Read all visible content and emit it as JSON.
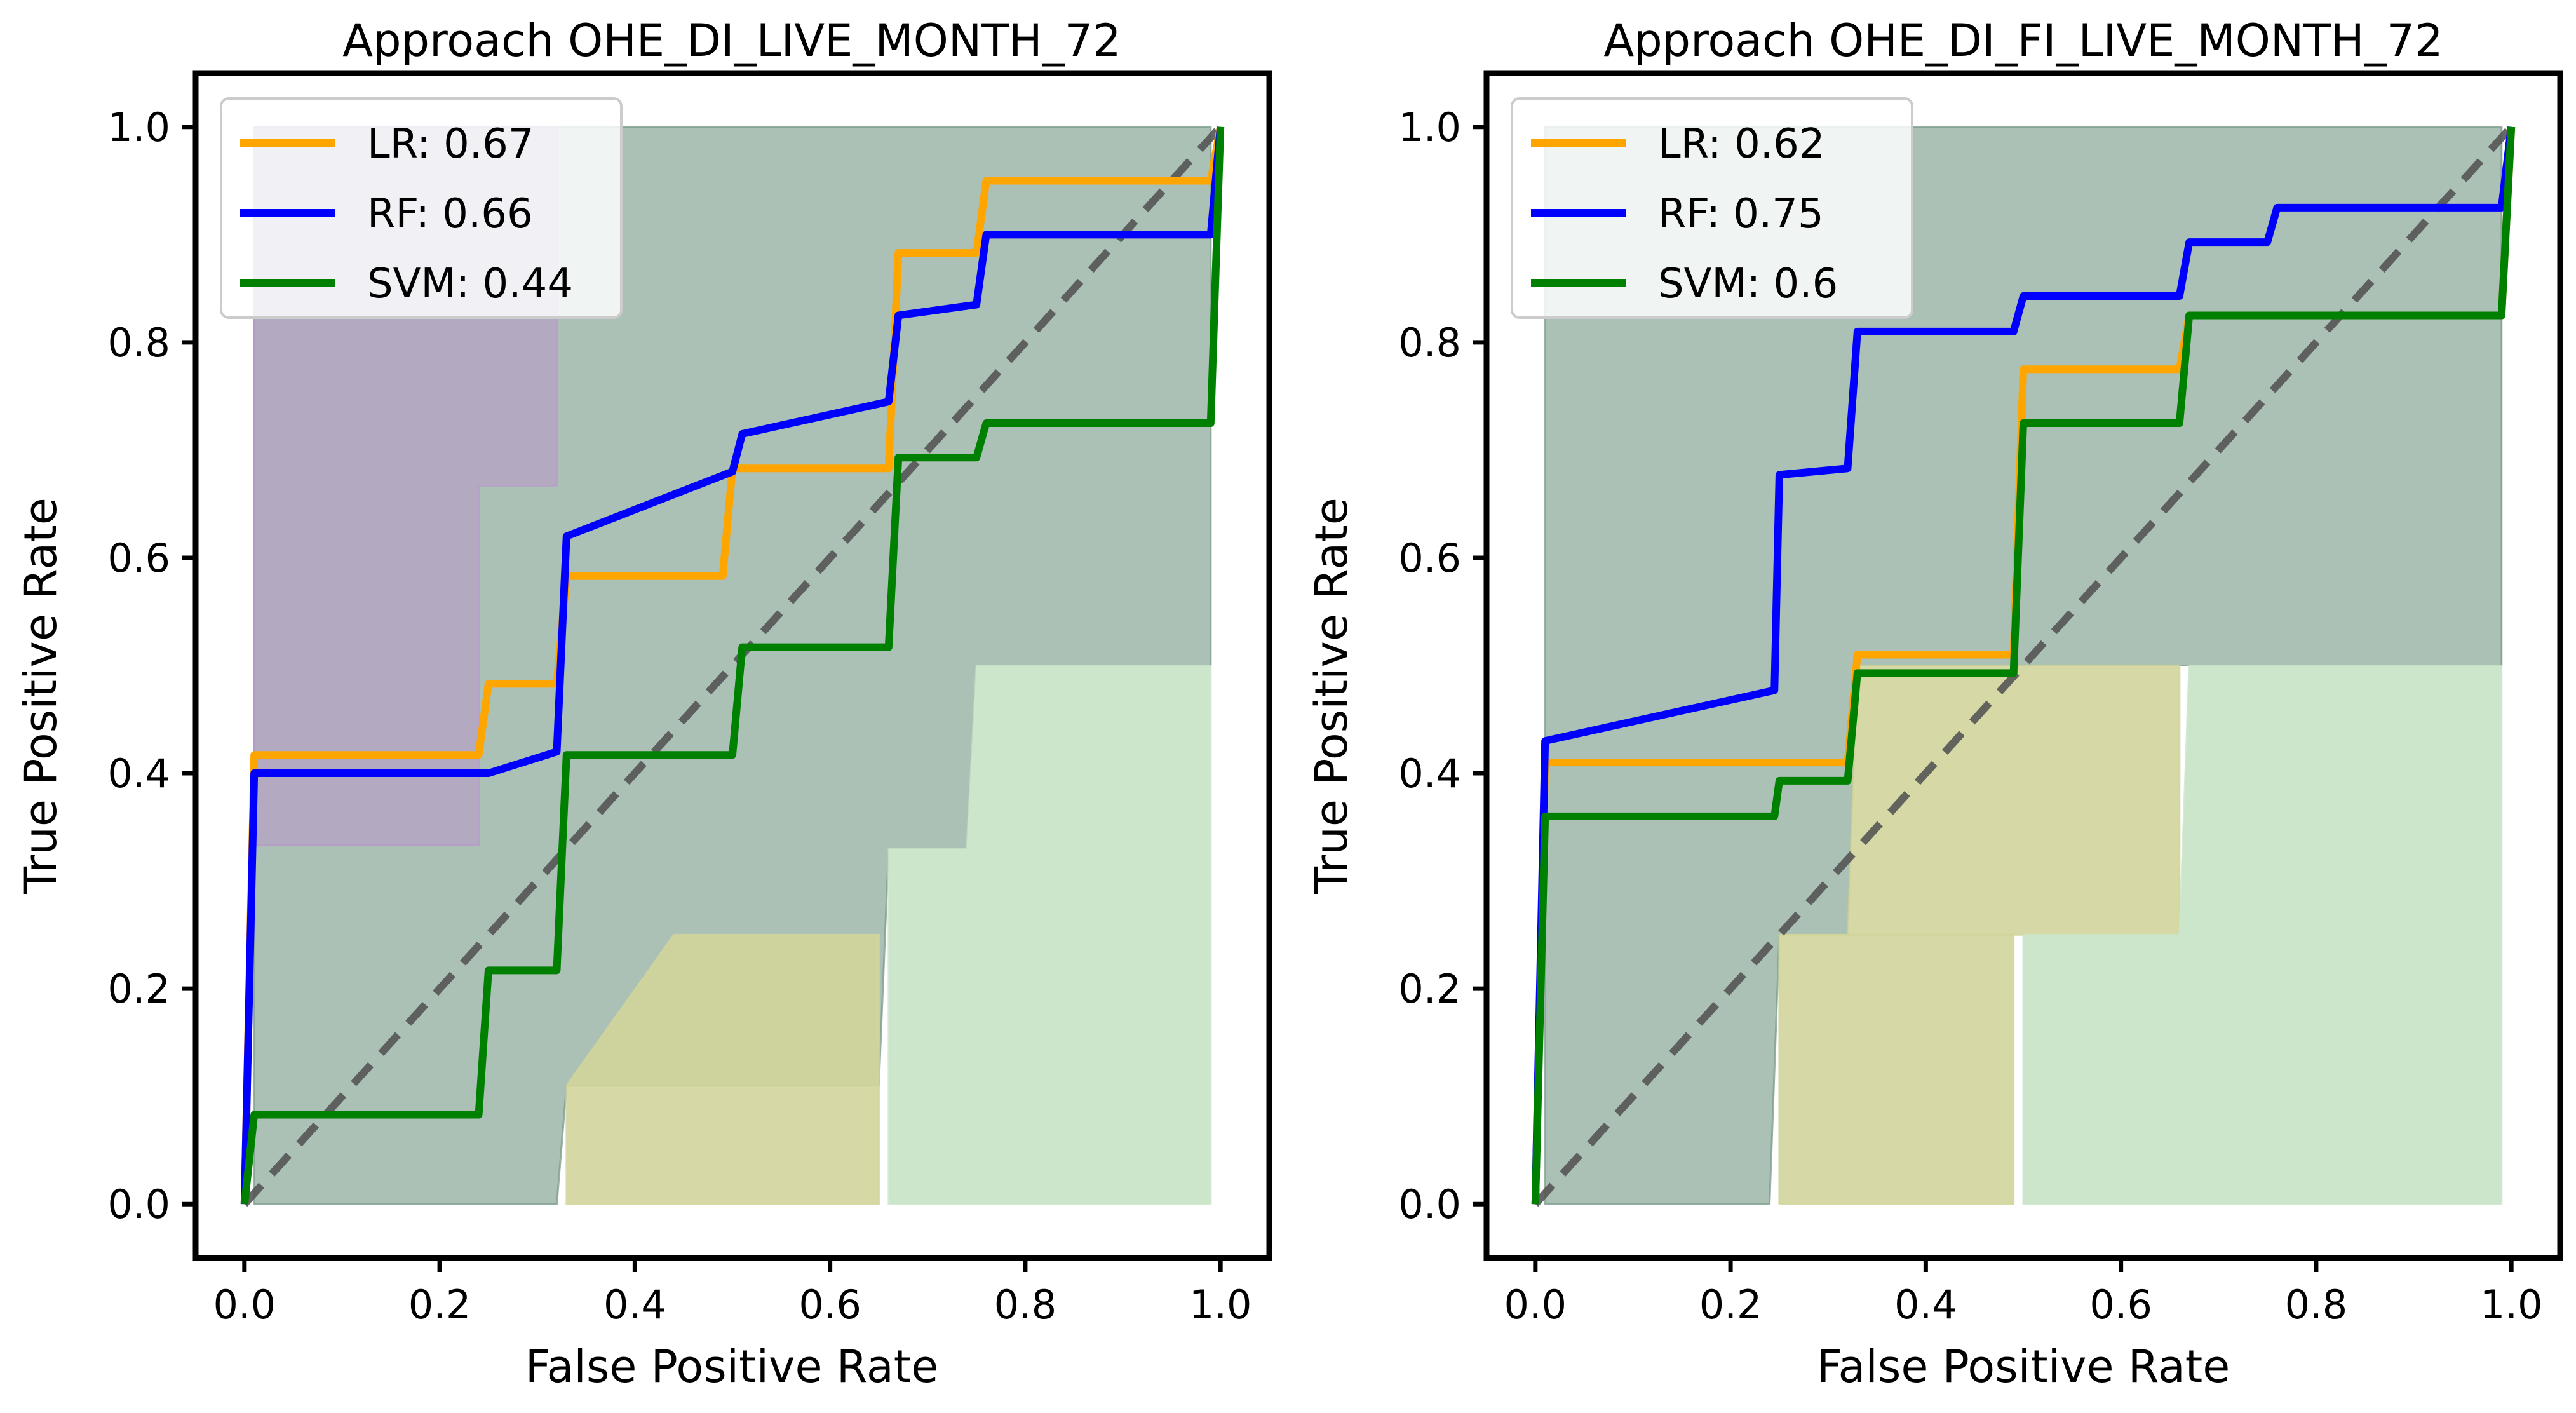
{
  "figure": {
    "background": "#ffffff"
  },
  "chart_data": [
    {
      "type": "line",
      "title": "Approach OHE_DI_LIVE_MONTH_72",
      "xlabel": "False Positive Rate",
      "ylabel": "True Positive Rate",
      "xlim": [
        -0.05,
        1.05
      ],
      "ylim": [
        -0.05,
        1.05
      ],
      "xticks": [
        "0.0",
        "0.2",
        "0.4",
        "0.6",
        "0.8",
        "1.0"
      ],
      "yticks": [
        "0.0",
        "0.2",
        "0.4",
        "0.6",
        "0.8",
        "1.0"
      ],
      "legend": {
        "location": "upper-left"
      },
      "series": [
        {
          "name": "LR: 0.67",
          "color": "#ffa500",
          "x": [
            0,
            0.01,
            0.24,
            0.25,
            0.32,
            0.33,
            0.49,
            0.5,
            0.66,
            0.67,
            0.75,
            0.76,
            0.99,
            1.0
          ],
          "y": [
            0,
            0.417,
            0.417,
            0.483,
            0.483,
            0.583,
            0.583,
            0.683,
            0.683,
            0.883,
            0.883,
            0.95,
            0.95,
            1.0
          ]
        },
        {
          "name": "RF: 0.66",
          "color": "#0000ff",
          "x": [
            0,
            0.01,
            0.25,
            0.32,
            0.33,
            0.5,
            0.51,
            0.66,
            0.67,
            0.75,
            0.76,
            0.99,
            1.0
          ],
          "y": [
            0,
            0.4,
            0.4,
            0.42,
            0.62,
            0.68,
            0.715,
            0.745,
            0.825,
            0.835,
            0.9,
            0.9,
            1.0
          ]
        },
        {
          "name": "SVM: 0.44",
          "color": "#008000",
          "x": [
            0,
            0.01,
            0.24,
            0.25,
            0.32,
            0.33,
            0.5,
            0.51,
            0.66,
            0.67,
            0.75,
            0.76,
            0.99,
            1.0
          ],
          "y": [
            0,
            0.083,
            0.083,
            0.217,
            0.217,
            0.417,
            0.417,
            0.517,
            0.517,
            0.693,
            0.693,
            0.725,
            0.725,
            1.0
          ]
        }
      ],
      "diagonal": {
        "color": "#555555",
        "x": [
          0,
          1
        ],
        "y": [
          0,
          1
        ]
      },
      "shaded_regions": [
        {
          "color": "#7f9f8f",
          "opacity": 0.65,
          "x": [
            0.01,
            0.24,
            0.25,
            0.32,
            0.33,
            0.65,
            0.66,
            0.74,
            0.75,
            0.99,
            0.99,
            0.01
          ],
          "y_lower": [
            0,
            0,
            0,
            0,
            0.11,
            0.11,
            0.33,
            0.33,
            0.5,
            0.5,
            1.0,
            1.0
          ]
        },
        {
          "color": "#b79cc8",
          "opacity": 0.65,
          "x": [
            0.01,
            0.24,
            0.24,
            0.25,
            0.25,
            0.32,
            0.32,
            0.01
          ],
          "y": [
            0.333,
            0.333,
            0.667,
            0.667,
            0.667,
            0.667,
            1.0,
            1.0
          ]
        },
        {
          "color": "#d2d59b",
          "opacity": 0.9,
          "x": [
            0.33,
            0.44,
            0.65,
            0.65,
            0.33
          ],
          "y": [
            0.11,
            0.25,
            0.25,
            0,
            0
          ]
        },
        {
          "color": "#cce6cc",
          "opacity": 1.0,
          "x": [
            0.66,
            0.74,
            0.75,
            0.99,
            0.99,
            0.66
          ],
          "y": [
            0.33,
            0.33,
            0.5,
            0.5,
            0,
            0
          ]
        }
      ]
    },
    {
      "type": "line",
      "title": "Approach OHE_DI_FI_LIVE_MONTH_72",
      "xlabel": "False Positive Rate",
      "ylabel": "True Positive Rate",
      "xlim": [
        -0.05,
        1.05
      ],
      "ylim": [
        -0.05,
        1.05
      ],
      "xticks": [
        "0.0",
        "0.2",
        "0.4",
        "0.6",
        "0.8",
        "1.0"
      ],
      "yticks": [
        "0.0",
        "0.2",
        "0.4",
        "0.6",
        "0.8",
        "1.0"
      ],
      "legend": {
        "location": "upper-left"
      },
      "series": [
        {
          "name": "LR: 0.62",
          "color": "#ffa500",
          "x": [
            0,
            0.01,
            0.32,
            0.33,
            0.49,
            0.5,
            0.66,
            0.67,
            0.99,
            1.0
          ],
          "y": [
            0,
            0.41,
            0.41,
            0.51,
            0.51,
            0.775,
            0.775,
            0.825,
            0.825,
            1.0
          ]
        },
        {
          "name": "RF: 0.75",
          "color": "#0000ff",
          "x": [
            0,
            0.01,
            0.245,
            0.25,
            0.32,
            0.33,
            0.49,
            0.5,
            0.66,
            0.67,
            0.75,
            0.76,
            0.99,
            1.0
          ],
          "y": [
            0,
            0.43,
            0.477,
            0.677,
            0.683,
            0.81,
            0.81,
            0.843,
            0.843,
            0.893,
            0.893,
            0.925,
            0.925,
            1.0
          ]
        },
        {
          "name": "SVM: 0.6",
          "color": "#008000",
          "x": [
            0,
            0.01,
            0.245,
            0.25,
            0.32,
            0.33,
            0.49,
            0.5,
            0.66,
            0.67,
            0.99,
            1.0
          ],
          "y": [
            0,
            0.36,
            0.36,
            0.393,
            0.393,
            0.493,
            0.493,
            0.725,
            0.725,
            0.825,
            0.825,
            1.0
          ]
        }
      ],
      "diagonal": {
        "color": "#555555",
        "x": [
          0,
          1
        ],
        "y": [
          0,
          1
        ]
      },
      "shaded_regions": [
        {
          "color": "#7f9f8f",
          "opacity": 0.65,
          "x": [
            0.01,
            0.24,
            0.25,
            0.32,
            0.33,
            0.99,
            0.99,
            0.01
          ],
          "y_lower": [
            0,
            0,
            0.25,
            0.25,
            0.5,
            0.5,
            1.0,
            1.0
          ]
        },
        {
          "color": "#d2d59b",
          "opacity": 0.9,
          "x": [
            0.25,
            0.32,
            0.33,
            0.49,
            0.5,
            0.65,
            0.66,
            0.66,
            0.25
          ],
          "y": [
            0.25,
            0.25,
            0.5,
            0.5,
            0.5,
            0.5,
            0.5,
            0.25,
            0.25
          ]
        },
        {
          "color": "#cce6cc",
          "opacity": 1.0,
          "x": [
            0.5,
            0.66,
            0.67,
            0.99,
            0.99,
            0.5
          ],
          "y": [
            0.25,
            0.25,
            0.5,
            0.5,
            0,
            0
          ]
        },
        {
          "color": "#d2d59b",
          "opacity": 0.9,
          "x": [
            0.25,
            0.49,
            0.49,
            0.25
          ],
          "y": [
            0,
            0,
            0.25,
            0.25
          ]
        }
      ]
    }
  ]
}
